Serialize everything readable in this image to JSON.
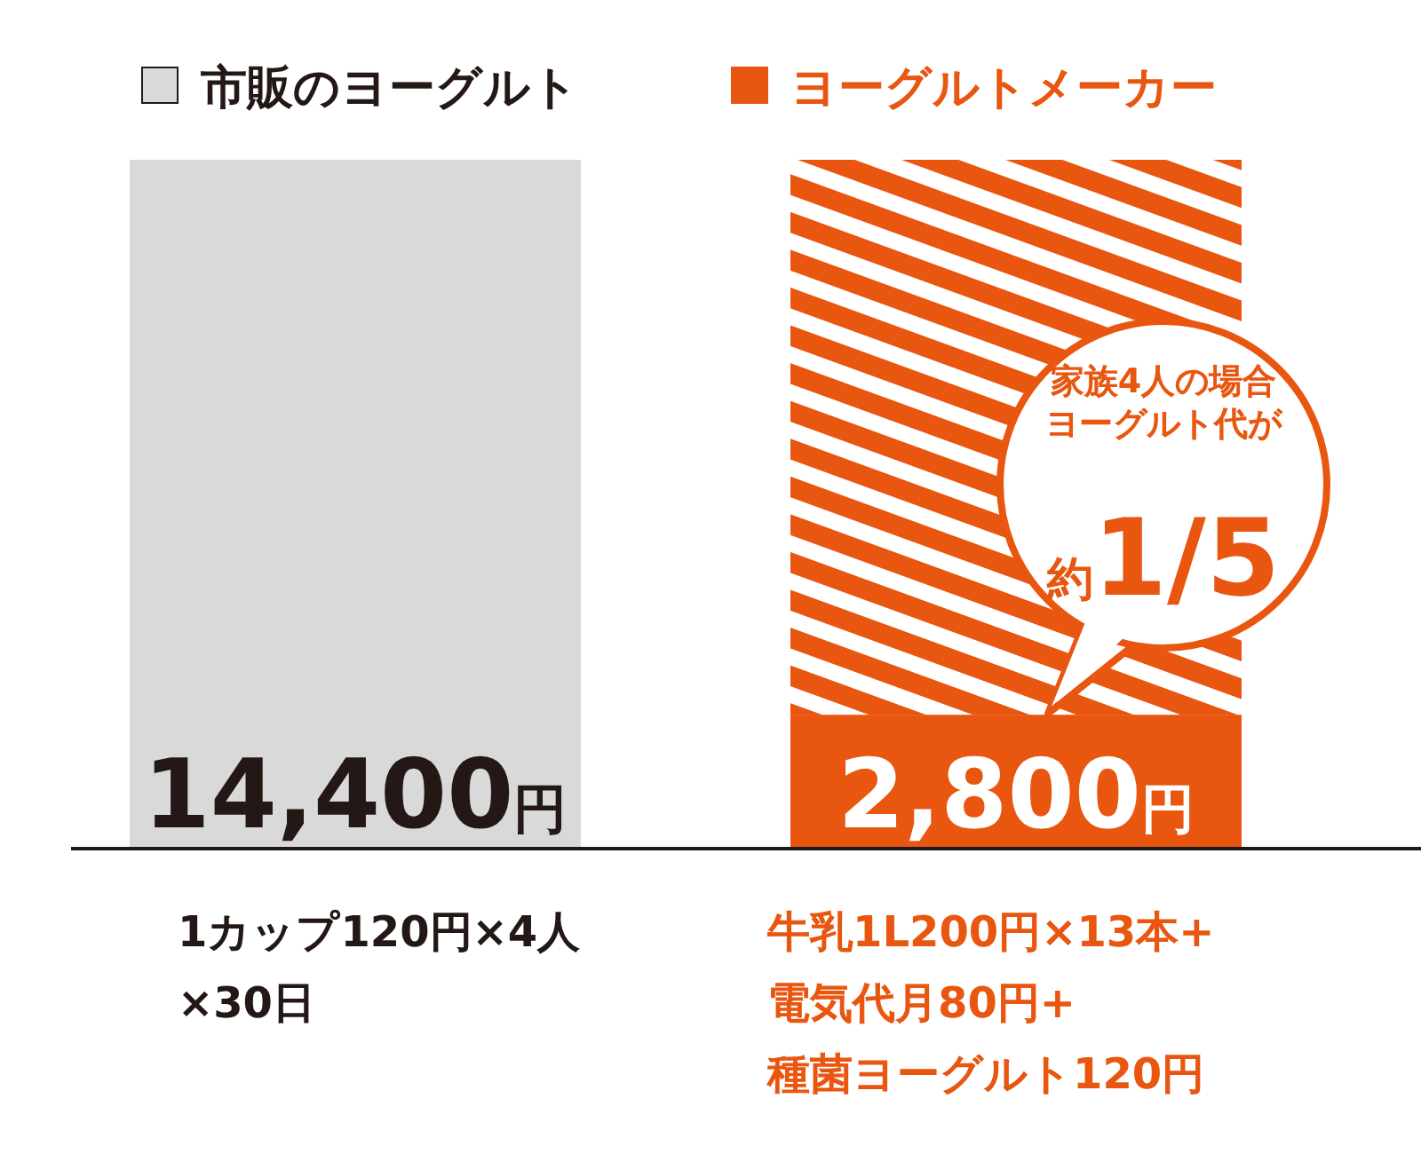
{
  "chart_data": {
    "type": "bar",
    "stacked": true,
    "categories": [
      null,
      null
    ],
    "series": [
      {
        "name": "市販のヨーグルト",
        "color": "#d9d9d9",
        "values": [
          14400,
          null
        ],
        "value_labels": [
          "14,400円",
          null
        ]
      },
      {
        "name": "ヨーグルトメーカー",
        "color": "#e8560f",
        "values": [
          null,
          2800
        ],
        "value_labels": [
          null,
          "2,800円"
        ]
      },
      {
        "color": "#e8560f",
        "values": [
          null,
          11600
        ]
      }
    ],
    "legend": "top",
    "annotations": [
      "家族4人の場合ヨーグルト代が",
      "約1/5",
      "1カップ120円×4人\n×30日",
      "牛乳1L200円×13本+\n電気代月80円+\n種菌ヨーグルト120円"
    ]
  }
}
